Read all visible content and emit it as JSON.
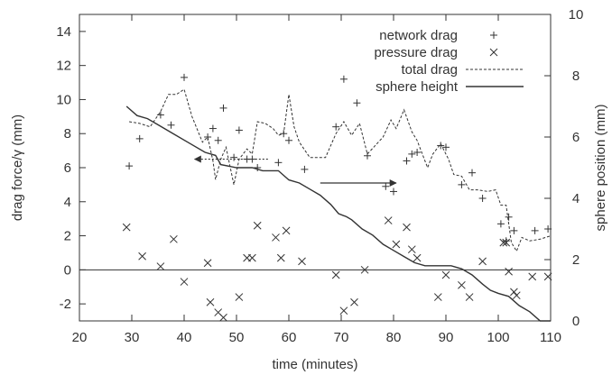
{
  "chart_data": {
    "type": "scatter",
    "xlabel": "time (minutes)",
    "ylabel": "drag force/γ (mm)",
    "y2label": "sphere position (mm)",
    "xlim": [
      20,
      110
    ],
    "ylim": [
      -3,
      15
    ],
    "y2lim": [
      0,
      10
    ],
    "x_ticks": [
      20,
      30,
      40,
      50,
      60,
      70,
      80,
      90,
      100,
      110
    ],
    "y_ticks": [
      -2,
      0,
      2,
      4,
      6,
      8,
      10,
      12,
      14
    ],
    "y2_ticks": [
      0,
      2,
      4,
      6,
      8,
      10
    ],
    "grid": false,
    "zero_line": true,
    "legend_position": "top-right",
    "colors": {
      "axis": "#333333",
      "series": "#333333",
      "arrow": "#333333"
    },
    "series": [
      {
        "name": "network drag",
        "marker": "plus",
        "axis": "left",
        "points": [
          [
            29.5,
            6.1
          ],
          [
            31.5,
            7.7
          ],
          [
            35.5,
            9.1
          ],
          [
            37.5,
            8.5
          ],
          [
            40.0,
            11.3
          ],
          [
            44.5,
            7.8
          ],
          [
            45.5,
            8.3
          ],
          [
            46.5,
            7.6
          ],
          [
            47.5,
            9.5
          ],
          [
            49.5,
            6.6
          ],
          [
            50.5,
            8.2
          ],
          [
            52.0,
            6.5
          ],
          [
            53.0,
            6.5
          ],
          [
            54.0,
            6.0
          ],
          [
            58.0,
            6.3
          ],
          [
            59.0,
            8.0
          ],
          [
            60.0,
            7.6
          ],
          [
            63.0,
            5.9
          ],
          [
            69.0,
            8.4
          ],
          [
            70.5,
            11.2
          ],
          [
            73.0,
            9.8
          ],
          [
            75.0,
            6.7
          ],
          [
            78.5,
            4.9
          ],
          [
            80.0,
            4.6
          ],
          [
            82.5,
            6.4
          ],
          [
            83.5,
            6.8
          ],
          [
            84.5,
            6.9
          ],
          [
            89.0,
            7.3
          ],
          [
            90.0,
            7.2
          ],
          [
            93.0,
            5.0
          ],
          [
            95.0,
            5.7
          ],
          [
            97.0,
            4.2
          ],
          [
            100.5,
            2.7
          ],
          [
            101.5,
            1.7
          ],
          [
            102.0,
            3.1
          ],
          [
            103.0,
            2.3
          ],
          [
            107.0,
            2.3
          ],
          [
            109.5,
            2.4
          ]
        ]
      },
      {
        "name": "pressure drag",
        "marker": "cross",
        "axis": "left",
        "points": [
          [
            29.0,
            2.5
          ],
          [
            32.0,
            0.8
          ],
          [
            35.5,
            0.2
          ],
          [
            38.0,
            1.8
          ],
          [
            40.0,
            -0.7
          ],
          [
            44.5,
            0.4
          ],
          [
            45.0,
            -1.9
          ],
          [
            46.5,
            -2.5
          ],
          [
            47.5,
            -2.8
          ],
          [
            50.5,
            -1.6
          ],
          [
            52.0,
            0.7
          ],
          [
            53.0,
            0.7
          ],
          [
            54.0,
            2.6
          ],
          [
            57.5,
            1.9
          ],
          [
            58.5,
            0.7
          ],
          [
            59.5,
            2.3
          ],
          [
            62.5,
            0.5
          ],
          [
            69.0,
            -0.3
          ],
          [
            70.5,
            -2.4
          ],
          [
            72.5,
            -1.9
          ],
          [
            74.5,
            0.0
          ],
          [
            79.0,
            2.9
          ],
          [
            80.5,
            1.5
          ],
          [
            82.5,
            2.5
          ],
          [
            83.5,
            1.2
          ],
          [
            84.5,
            0.7
          ],
          [
            88.5,
            -1.6
          ],
          [
            90.0,
            -0.3
          ],
          [
            93.0,
            -0.9
          ],
          [
            94.5,
            -1.6
          ],
          [
            97.0,
            0.5
          ],
          [
            101.0,
            1.6
          ],
          [
            101.5,
            1.6
          ],
          [
            102.0,
            -0.1
          ],
          [
            103.0,
            -1.3
          ],
          [
            103.5,
            -1.5
          ],
          [
            106.5,
            -0.4
          ],
          [
            109.5,
            -0.4
          ]
        ]
      },
      {
        "name": "total drag",
        "style": "dashed",
        "axis": "left",
        "points": [
          [
            29.5,
            8.7
          ],
          [
            31.5,
            8.6
          ],
          [
            33.5,
            8.4
          ],
          [
            35.5,
            9.3
          ],
          [
            37.0,
            10.3
          ],
          [
            38.5,
            10.3
          ],
          [
            40.0,
            10.6
          ],
          [
            41.5,
            9.0
          ],
          [
            43.5,
            7.5
          ],
          [
            44.5,
            7.8
          ],
          [
            45.5,
            6.4
          ],
          [
            46.0,
            5.3
          ],
          [
            47.0,
            6.5
          ],
          [
            48.0,
            7.2
          ],
          [
            49.5,
            5.0
          ],
          [
            50.5,
            6.5
          ],
          [
            52.0,
            7.1
          ],
          [
            53.0,
            6.8
          ],
          [
            54.0,
            8.7
          ],
          [
            55.5,
            8.6
          ],
          [
            57.0,
            8.3
          ],
          [
            58.0,
            7.9
          ],
          [
            59.0,
            8.0
          ],
          [
            60.0,
            10.3
          ],
          [
            61.0,
            8.4
          ],
          [
            62.0,
            7.5
          ],
          [
            64.0,
            6.6
          ],
          [
            67.0,
            6.6
          ],
          [
            69.0,
            8.0
          ],
          [
            70.5,
            8.7
          ],
          [
            72.0,
            7.9
          ],
          [
            73.5,
            8.6
          ],
          [
            75.0,
            6.8
          ],
          [
            78.0,
            7.8
          ],
          [
            79.5,
            8.8
          ],
          [
            80.5,
            8.3
          ],
          [
            82.0,
            9.4
          ],
          [
            83.5,
            8.1
          ],
          [
            84.5,
            7.6
          ],
          [
            86.5,
            6.0
          ],
          [
            87.5,
            6.8
          ],
          [
            89.0,
            7.4
          ],
          [
            90.5,
            6.5
          ],
          [
            91.5,
            5.6
          ],
          [
            93.0,
            5.5
          ],
          [
            94.5,
            4.7
          ],
          [
            96.0,
            4.7
          ],
          [
            98.0,
            4.6
          ],
          [
            99.5,
            4.7
          ],
          [
            100.5,
            3.8
          ],
          [
            101.5,
            3.8
          ],
          [
            102.5,
            1.6
          ],
          [
            103.5,
            1.1
          ],
          [
            104.5,
            1.9
          ],
          [
            106.0,
            1.7
          ],
          [
            108.0,
            1.8
          ],
          [
            110.0,
            2.0
          ]
        ]
      },
      {
        "name": "sphere height",
        "style": "solid",
        "axis": "right",
        "points": [
          [
            29.0,
            7.0
          ],
          [
            31.0,
            6.7
          ],
          [
            33.0,
            6.6
          ],
          [
            35.0,
            6.4
          ],
          [
            38.0,
            6.1
          ],
          [
            41.0,
            5.8
          ],
          [
            44.0,
            5.5
          ],
          [
            46.0,
            5.4
          ],
          [
            47.0,
            5.1
          ],
          [
            50.0,
            5.0
          ],
          [
            53.0,
            5.0
          ],
          [
            55.0,
            4.9
          ],
          [
            58.0,
            4.9
          ],
          [
            60.0,
            4.6
          ],
          [
            62.0,
            4.5
          ],
          [
            64.0,
            4.3
          ],
          [
            66.0,
            4.1
          ],
          [
            68.0,
            3.8
          ],
          [
            69.5,
            3.5
          ],
          [
            71.0,
            3.4
          ],
          [
            72.0,
            3.3
          ],
          [
            74.0,
            3.0
          ],
          [
            76.0,
            2.8
          ],
          [
            78.0,
            2.5
          ],
          [
            80.0,
            2.3
          ],
          [
            82.0,
            2.1
          ],
          [
            84.0,
            1.9
          ],
          [
            86.0,
            1.8
          ],
          [
            89.0,
            1.8
          ],
          [
            91.0,
            1.8
          ],
          [
            93.0,
            1.7
          ],
          [
            95.0,
            1.5
          ],
          [
            97.0,
            1.2
          ],
          [
            98.5,
            1.0
          ],
          [
            100.0,
            0.9
          ],
          [
            102.0,
            0.8
          ],
          [
            104.0,
            0.5
          ],
          [
            106.0,
            0.3
          ],
          [
            108.0,
            0.0
          ],
          [
            110.0,
            -0.3
          ]
        ]
      }
    ],
    "annotations": [
      {
        "type": "arrow",
        "axis": "left",
        "from": [
          56.0,
          6.5
        ],
        "to": [
          42.0,
          6.5
        ],
        "style": "dotted"
      },
      {
        "type": "arrow",
        "axis": "left",
        "from": [
          66.0,
          5.1
        ],
        "to": [
          80.5,
          5.1
        ],
        "style": "solid"
      }
    ]
  }
}
